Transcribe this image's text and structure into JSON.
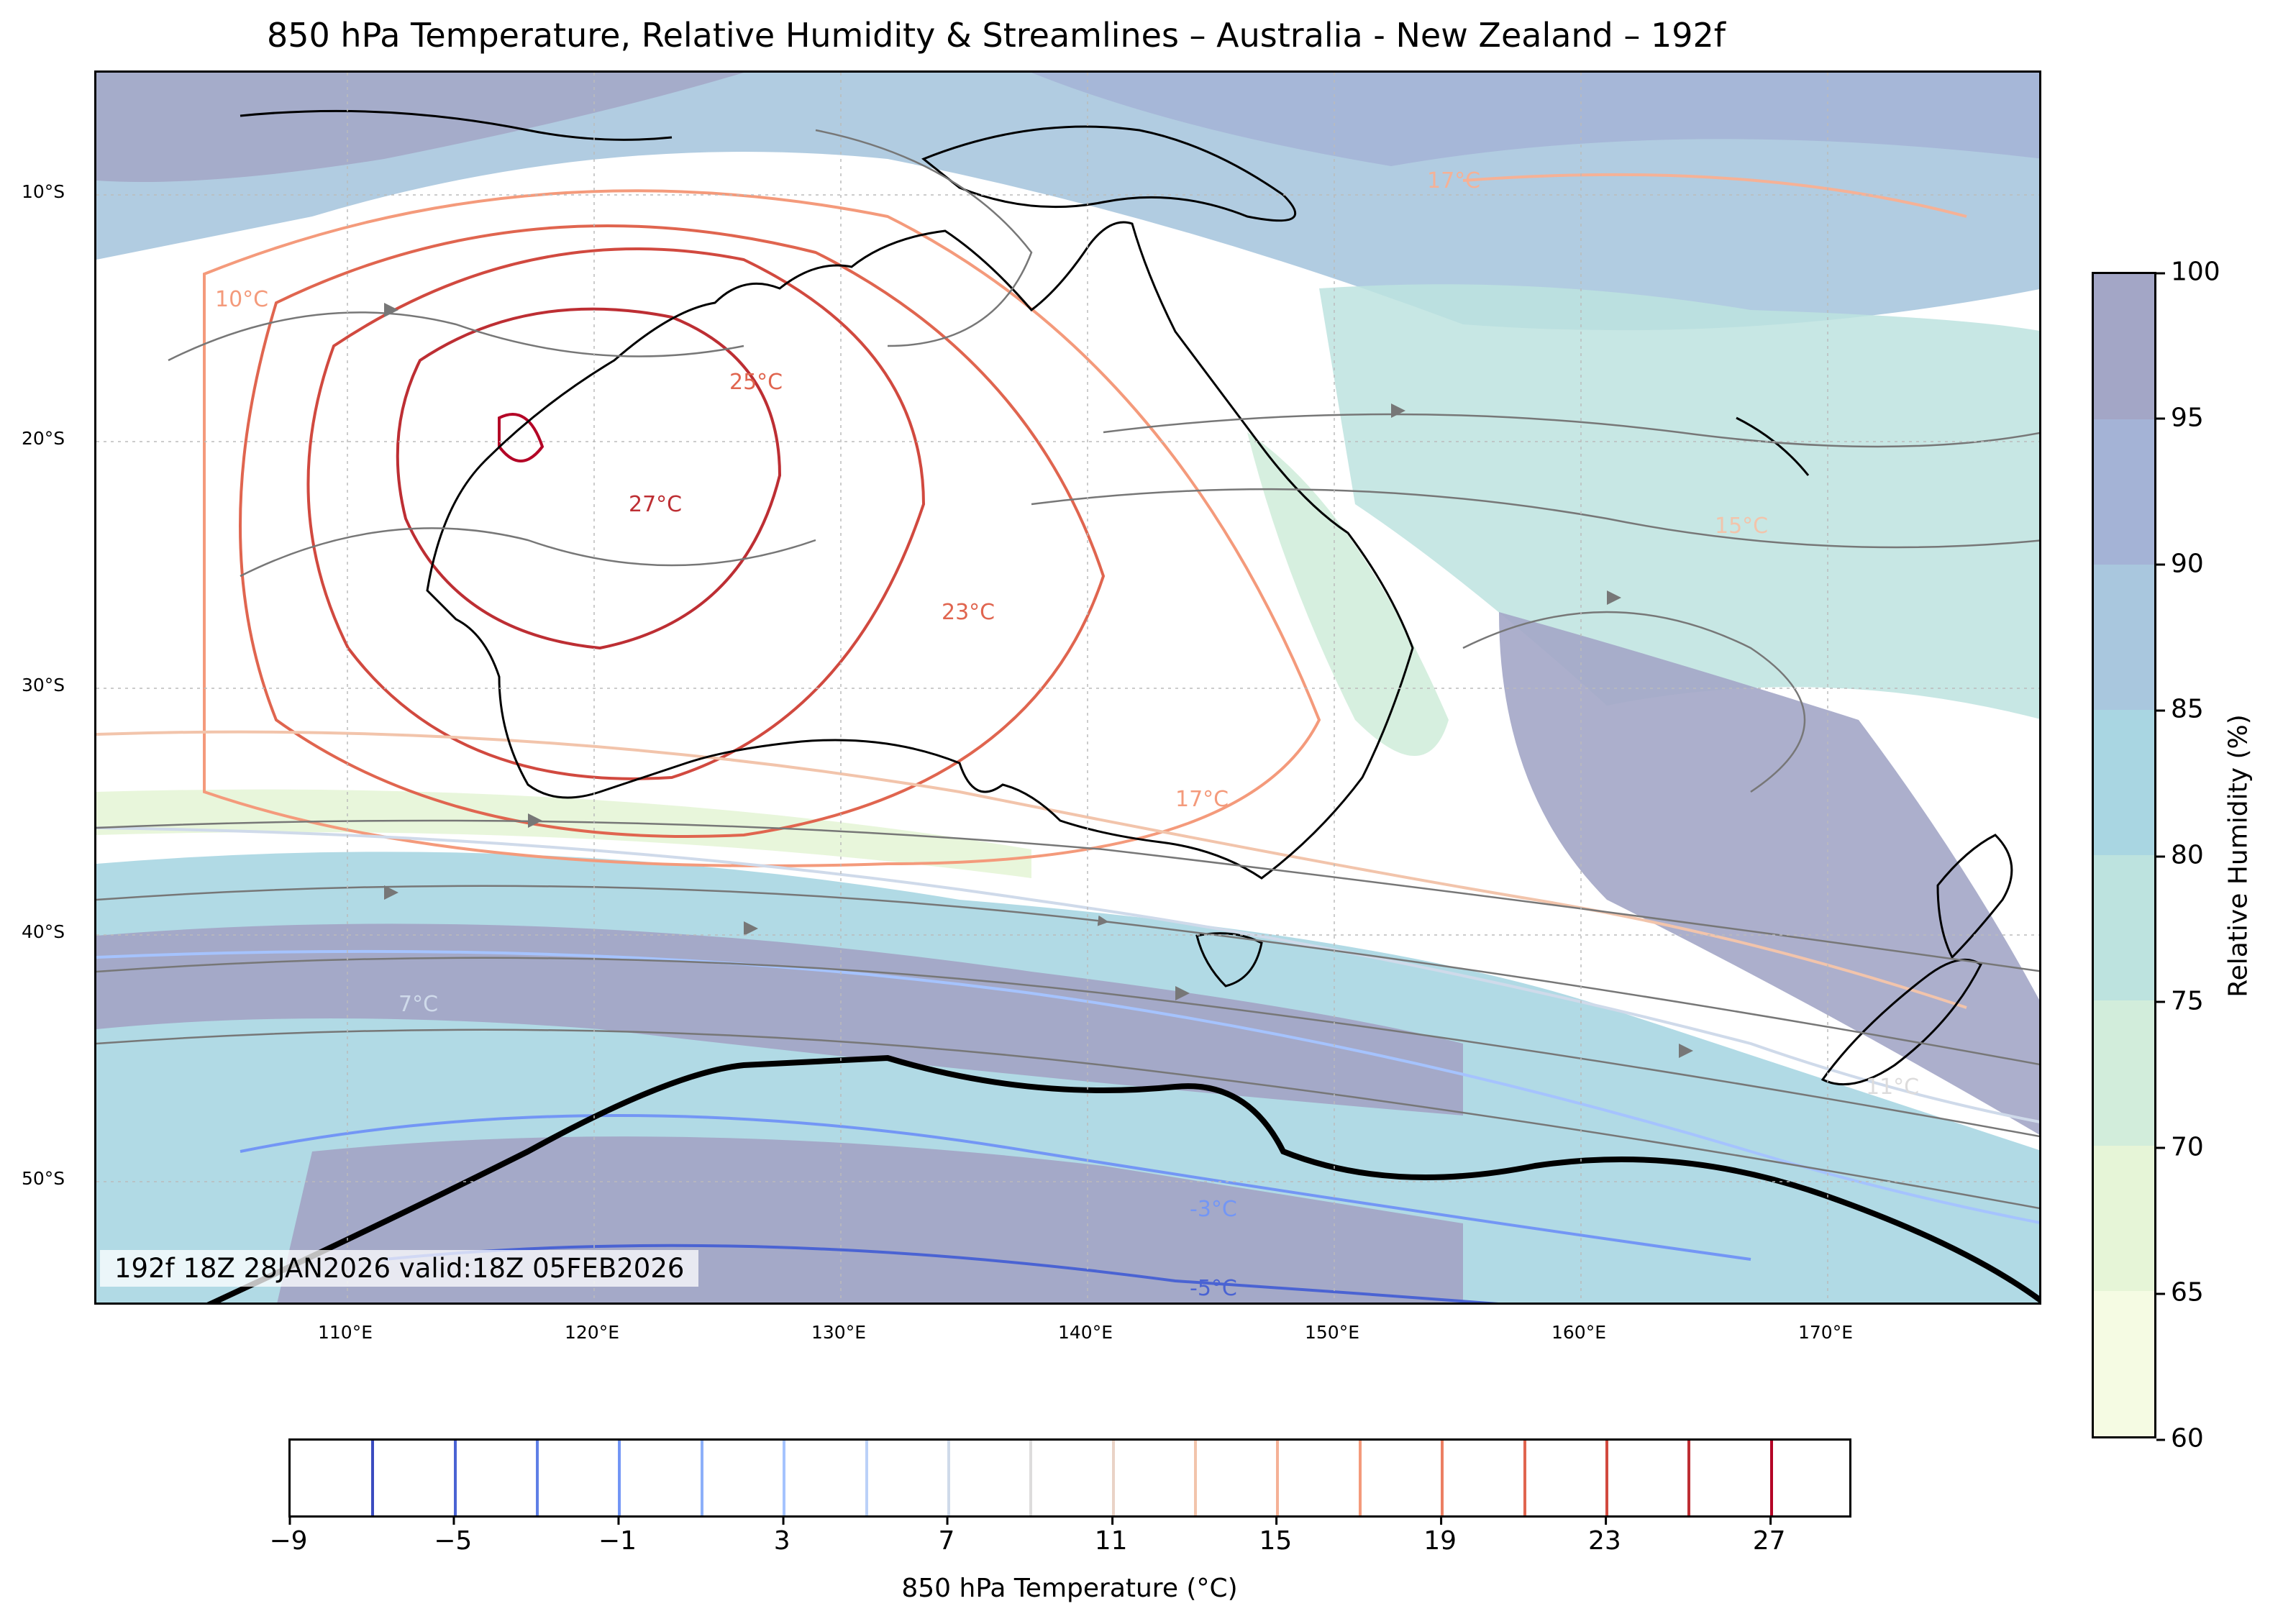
{
  "title": "850 hPa Temperature, Relative Humidity & Streamlines – Australia - New Zealand – 192f",
  "stamp": "192f 18Z 28JAN2026 valid:18Z 05FEB2026",
  "lat_labels": [
    "10°S",
    "20°S",
    "30°S",
    "40°S",
    "50°S"
  ],
  "lon_labels": [
    "110°E",
    "120°E",
    "130°E",
    "140°E",
    "150°E",
    "160°E",
    "170°E"
  ],
  "contour_labels": [
    "10°C",
    "25°C",
    "27°C",
    "23°C",
    "17°C",
    "7°C",
    "-3°C",
    "-5°C",
    "17°C",
    "15°C",
    "11°C"
  ],
  "rh_colorbar": {
    "label": "Relative Humidity (%)",
    "ticks": [
      "100",
      "95",
      "90",
      "85",
      "80",
      "75",
      "70",
      "65",
      "60"
    ],
    "colors": [
      "#a3a6c6",
      "#a4b3d6",
      "#a9c7de",
      "#a9d6e2",
      "#bde3df",
      "#d2eddb",
      "#e6f5d7",
      "#f5fbe3"
    ]
  },
  "temp_colorbar": {
    "label": "850 hPa Temperature (°C)",
    "ticks": [
      "−9",
      "−5",
      "−1",
      "3",
      "7",
      "11",
      "15",
      "19",
      "23",
      "27"
    ],
    "levels": [
      -7,
      -5,
      -3,
      -1,
      1,
      3,
      5,
      7,
      9,
      11,
      13,
      15,
      17,
      19,
      21,
      23,
      25,
      27
    ],
    "colors": [
      "#3b4cc0",
      "#4a63d3",
      "#5f7fe6",
      "#7396f5",
      "#8caff9",
      "#a5c3fe",
      "#bbd1f8",
      "#cfdaea",
      "#dddcdc",
      "#ead3c6",
      "#f2c4ab",
      "#f5b196",
      "#f49a7b",
      "#ec7f63",
      "#e0654f",
      "#d1493f",
      "#bd2e33",
      "#b40426"
    ],
    "range": [
      -9,
      29
    ]
  }
}
